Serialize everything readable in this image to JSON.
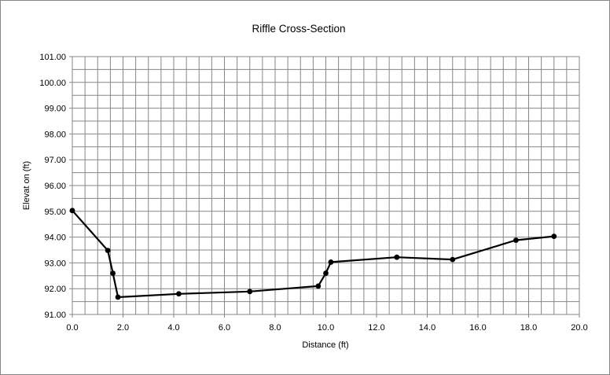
{
  "chart_data": {
    "type": "line",
    "title": "Riffle Cross-Section",
    "xlabel": "Distance (ft)",
    "ylabel": "Elevat on (ft)",
    "xlim": [
      0.0,
      20.0
    ],
    "ylim": [
      91.0,
      101.0
    ],
    "x_tick_labels": [
      "0.0",
      "2.0",
      "4.0",
      "6.0",
      "8.0",
      "10.0",
      "12.0",
      "14.0",
      "16.0",
      "18.0",
      "20.0"
    ],
    "y_tick_labels": [
      "91.00",
      "92.00",
      "93.00",
      "94.00",
      "95.00",
      "96.00",
      "97.00",
      "98.00",
      "99.00",
      "100.00",
      "101.00"
    ],
    "x_minor_step": 0.5,
    "y_minor_step": 0.5,
    "grid": true,
    "legend": "none",
    "series": [
      {
        "color": "#000000",
        "points": [
          {
            "x": 0.0,
            "y": 95.03
          },
          {
            "x": 1.4,
            "y": 93.48
          },
          {
            "x": 1.6,
            "y": 92.6
          },
          {
            "x": 1.8,
            "y": 91.67
          },
          {
            "x": 4.2,
            "y": 91.8
          },
          {
            "x": 7.0,
            "y": 91.89
          },
          {
            "x": 9.7,
            "y": 92.1
          },
          {
            "x": 10.0,
            "y": 92.6
          },
          {
            "x": 10.2,
            "y": 93.03
          },
          {
            "x": 12.8,
            "y": 93.22
          },
          {
            "x": 15.0,
            "y": 93.13
          },
          {
            "x": 17.5,
            "y": 93.88
          },
          {
            "x": 19.0,
            "y": 94.03
          }
        ]
      }
    ]
  }
}
